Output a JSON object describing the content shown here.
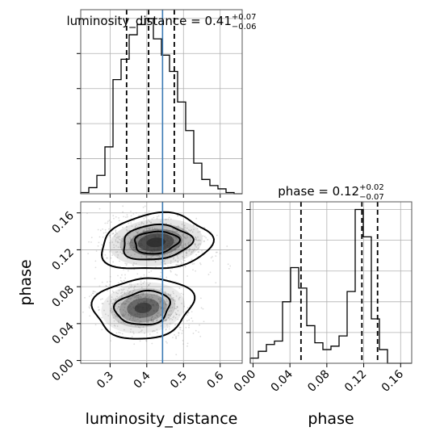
{
  "colors": {
    "truth": "#3b7ab5",
    "line": "#000000",
    "grid": "#b0b0b0",
    "samples": "#9a9a9a",
    "density_fill": "#2b2b2b"
  },
  "titles": {
    "luminosity_distance": {
      "text": "luminosity_distance = 0.41",
      "plus": "+0.07",
      "minus": "−0.06"
    },
    "phase": {
      "text": "phase = 0.12",
      "plus": "+0.02",
      "minus": "−0.07"
    }
  },
  "chart_data": [
    {
      "type": "bar",
      "panel": "marginal-luminosity_distance",
      "xlim": [
        0.22,
        0.66
      ],
      "bin_edges": [
        0.22,
        0.242,
        0.264,
        0.286,
        0.308,
        0.33,
        0.352,
        0.374,
        0.396,
        0.418,
        0.44,
        0.462,
        0.484,
        0.506,
        0.528,
        0.55,
        0.572,
        0.594,
        0.616,
        0.638,
        0.66
      ],
      "values": [
        0.3,
        1.5,
        4.5,
        11.5,
        28,
        33,
        39,
        41.5,
        43,
        38,
        34,
        30,
        22.5,
        15.5,
        7.5,
        3.5,
        2,
        1.2,
        0.3,
        0
      ],
      "quantiles": [
        0.345,
        0.405,
        0.475
      ],
      "truth": 0.443,
      "grid": true,
      "ytick_labels": false
    },
    {
      "type": "bar",
      "panel": "marginal-phase",
      "xlim": [
        -0.003,
        0.172
      ],
      "bin_edges": [
        -0.003,
        0.00575,
        0.0145,
        0.02325,
        0.032,
        0.04075,
        0.0495,
        0.05825,
        0.067,
        0.07575,
        0.0845,
        0.09325,
        0.102,
        0.11075,
        0.1195,
        0.12825,
        0.137,
        0.14575,
        0.1545,
        0.16325,
        0.172
      ],
      "values": [
        1.5,
        3.5,
        5.5,
        6.5,
        18,
        28,
        22,
        11,
        6,
        4,
        5,
        8,
        21,
        45,
        37,
        13,
        4,
        0,
        0,
        0
      ],
      "quantiles": [
        0.052,
        0.118,
        0.135
      ],
      "grid": true,
      "ytick_labels": false,
      "xlabel": "phase",
      "xticks": [
        0.0,
        0.04,
        0.08,
        0.12,
        0.16
      ],
      "xtick_labels": [
        "0.00",
        "0.04",
        "0.08",
        "0.12",
        "0.16"
      ]
    },
    {
      "type": "scatter",
      "panel": "joint-luminosity_distance-phase",
      "xlabel": "luminosity_distance",
      "ylabel": "phase",
      "xlim": [
        0.22,
        0.66
      ],
      "ylim": [
        -0.003,
        0.172
      ],
      "xticks": [
        0.3,
        0.4,
        0.5,
        0.6
      ],
      "xtick_labels": [
        "0.3",
        "0.4",
        "0.5",
        "0.6"
      ],
      "yticks": [
        0.0,
        0.04,
        0.08,
        0.12,
        0.16
      ],
      "ytick_labels": [
        "0.00",
        "0.04",
        "0.08",
        "0.12",
        "0.16"
      ],
      "truth_x": 0.443,
      "grid": true,
      "modes": [
        {
          "cx": 0.425,
          "cy": 0.128,
          "sx": 0.058,
          "sy": 0.0115,
          "rho": -0.25,
          "weight": 0.58
        },
        {
          "cx": 0.39,
          "cy": 0.057,
          "sx": 0.052,
          "sy": 0.0125,
          "rho": -0.3,
          "weight": 0.42
        }
      ],
      "contours": [
        {
          "mode": 0,
          "level": 1.0
        },
        {
          "mode": 0,
          "level": 1.6
        },
        {
          "mode": 0,
          "level": 2.5
        },
        {
          "mode": 1,
          "level": 1.0
        },
        {
          "mode": 1,
          "level": 1.8
        }
      ]
    }
  ]
}
